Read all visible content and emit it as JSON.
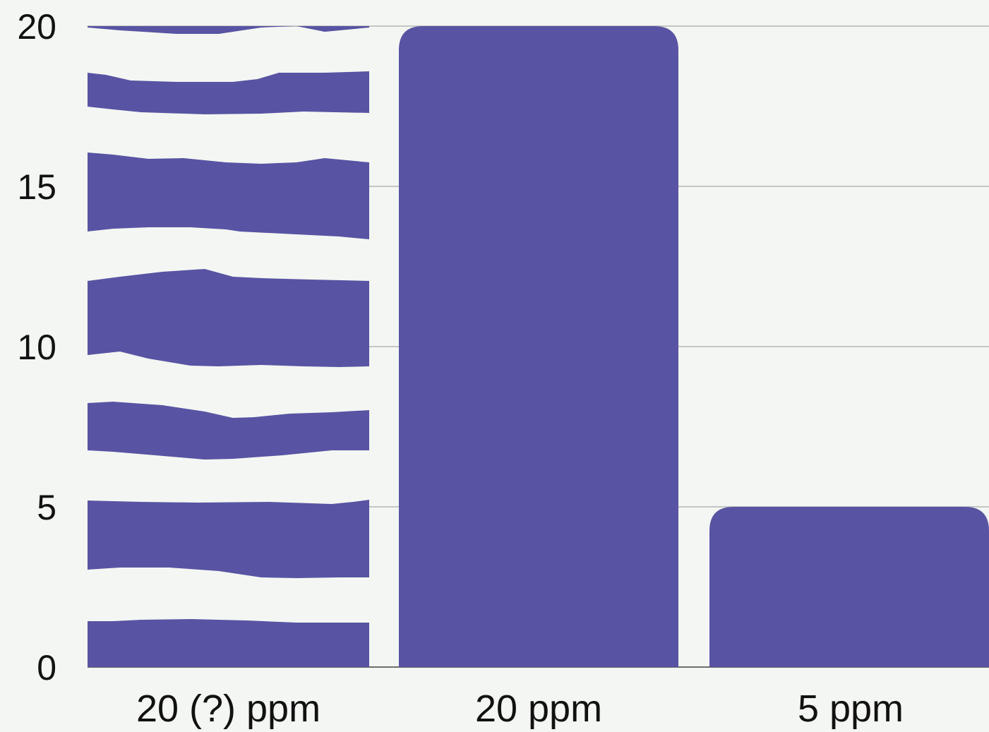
{
  "chart_data": {
    "type": "bar",
    "title": "",
    "xlabel": "",
    "ylabel": "",
    "categories": [
      "20 (?) ppm",
      "20 ppm",
      "5 ppm"
    ],
    "values": [
      20,
      20,
      5
    ],
    "bar_styles": [
      "torn",
      "solid",
      "solid"
    ],
    "ylim": [
      0,
      20
    ],
    "yticks": [
      0,
      5,
      10,
      15,
      20
    ],
    "grid": true,
    "legend": "none",
    "colors": {
      "bar": "#5854a3",
      "background": "#f4f6f3",
      "grid": "#c4c6c3"
    }
  }
}
